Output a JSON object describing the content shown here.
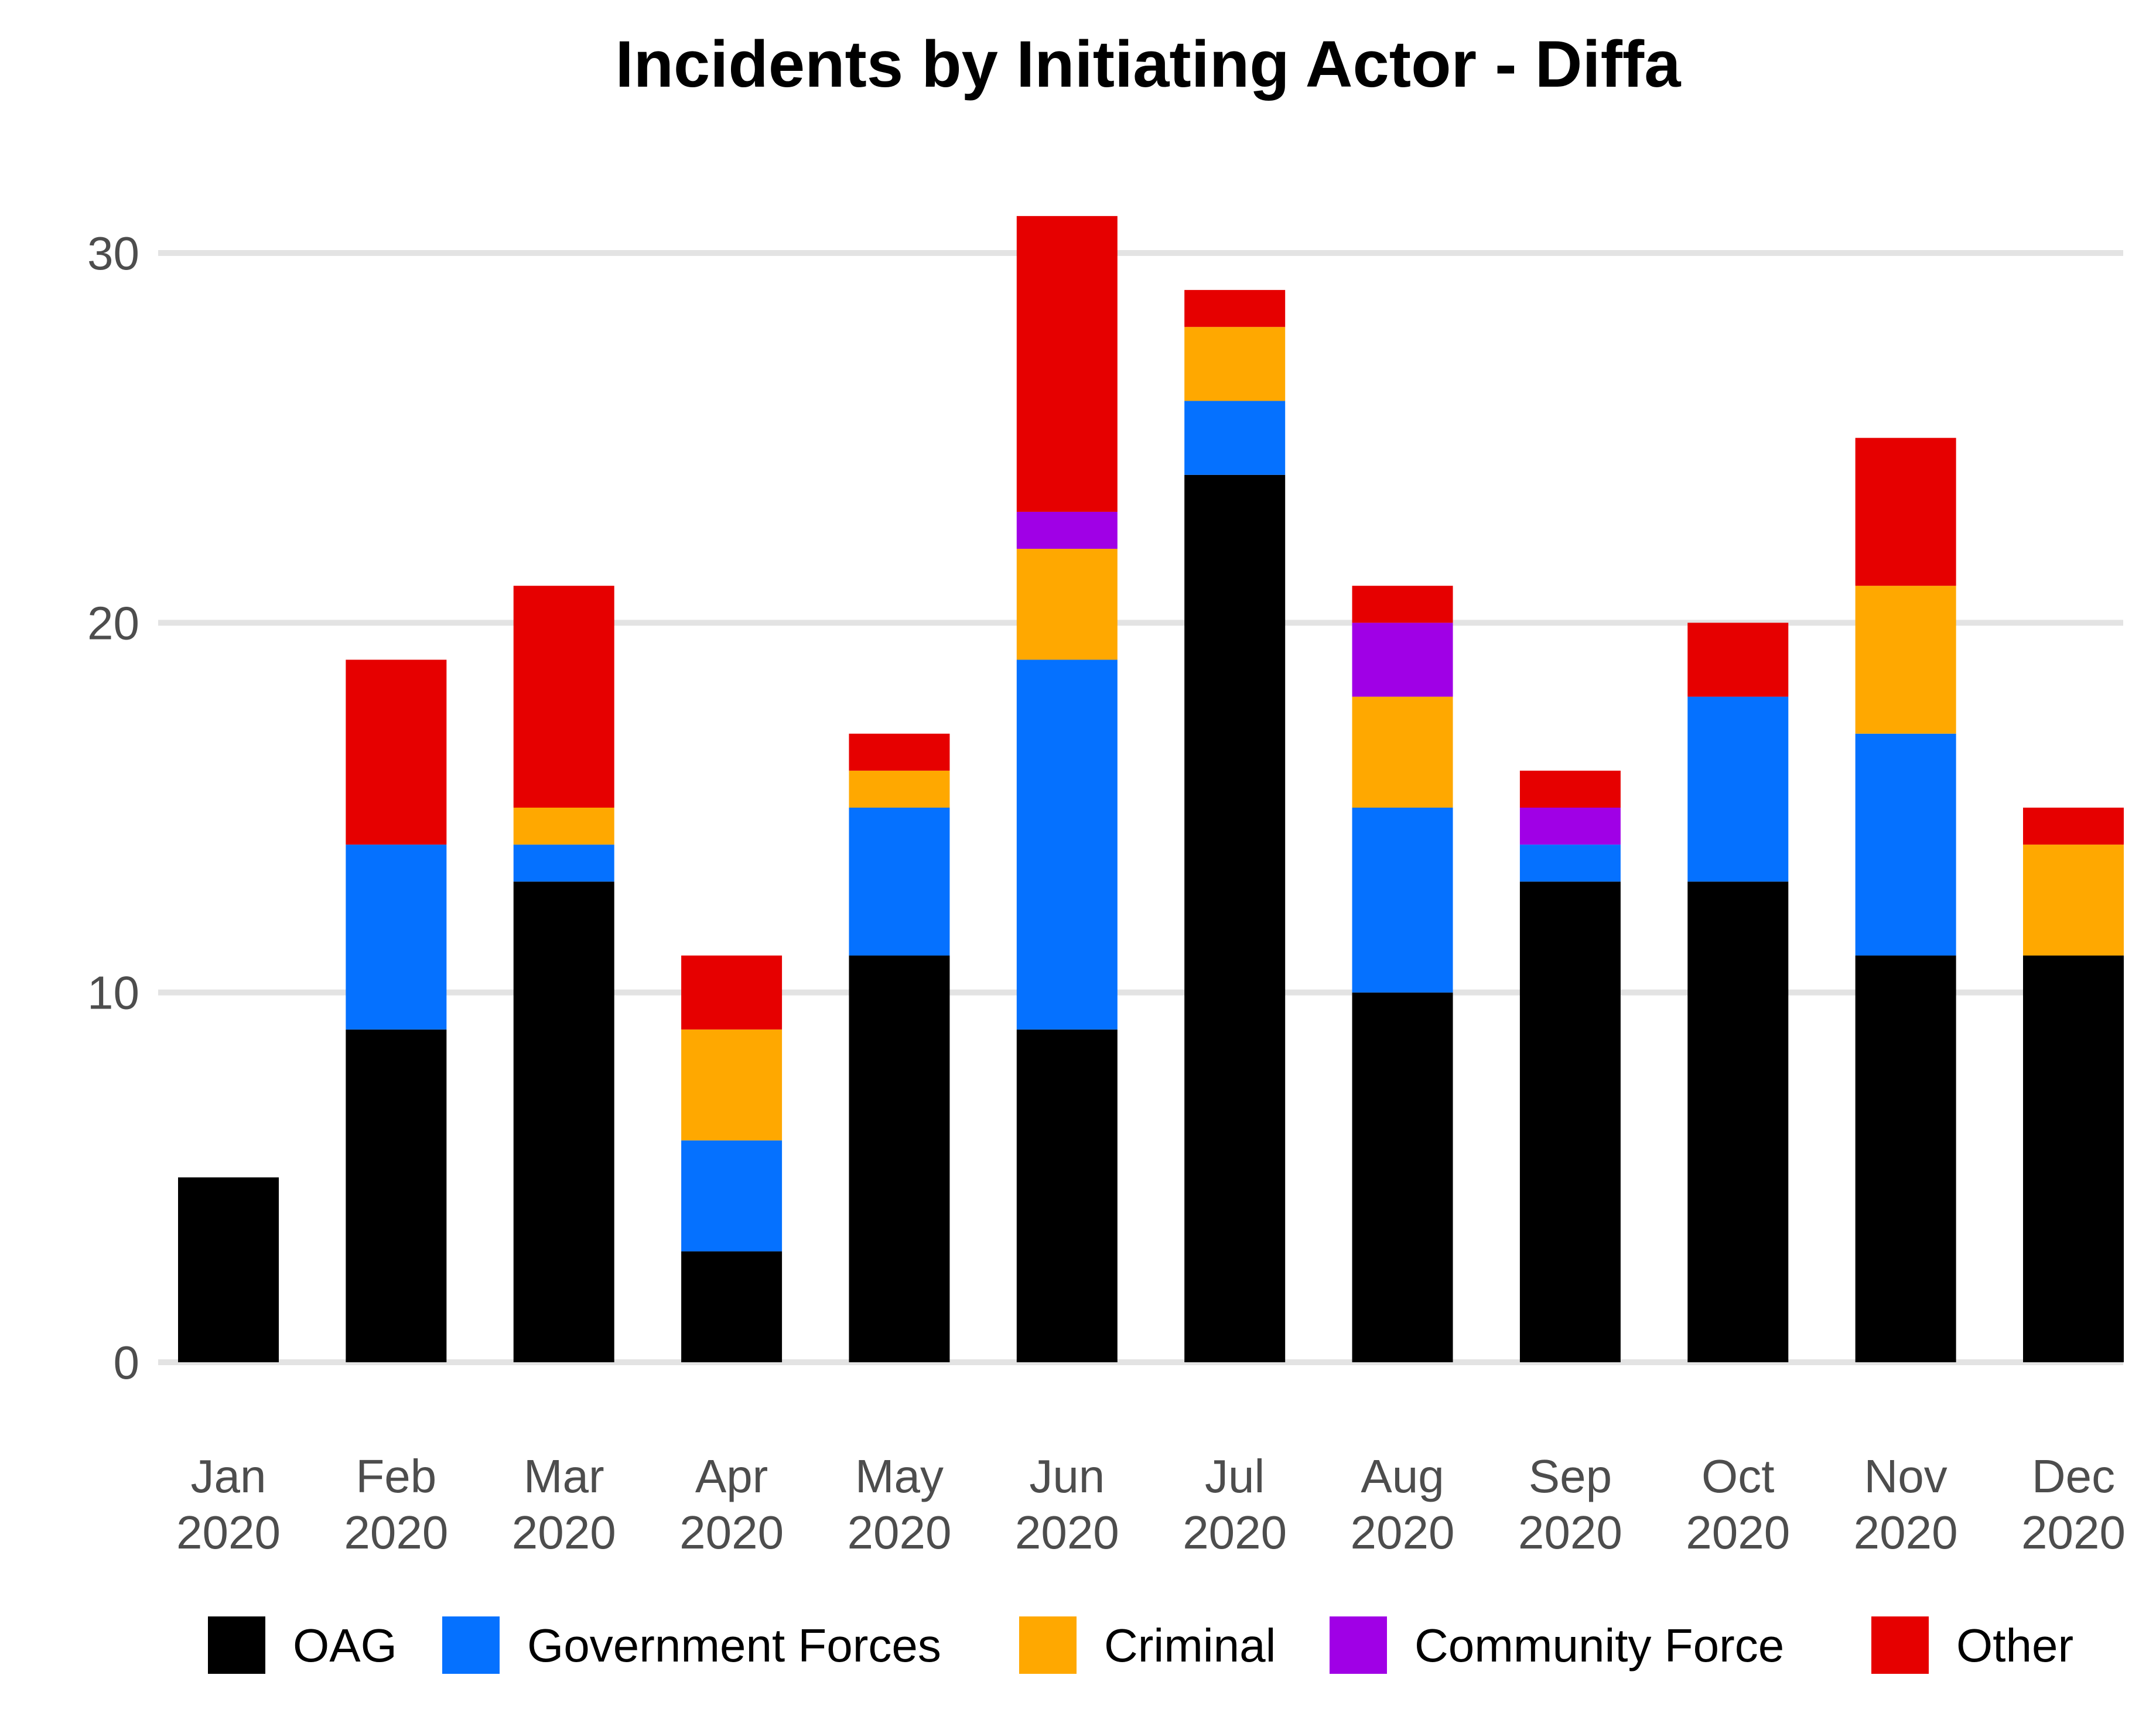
{
  "chart_data": {
    "type": "bar",
    "stacked": true,
    "title": "Incidents by Initiating Actor - Diffa",
    "xlabel": "",
    "ylabel": "",
    "ylim": [
      0,
      32
    ],
    "yticks": [
      0,
      10,
      20,
      30
    ],
    "grid": "horizontal",
    "legend_position": "bottom",
    "categories": [
      [
        "Jan",
        "2020"
      ],
      [
        "Feb",
        "2020"
      ],
      [
        "Mar",
        "2020"
      ],
      [
        "Apr",
        "2020"
      ],
      [
        "May",
        "2020"
      ],
      [
        "Jun",
        "2020"
      ],
      [
        "Jul",
        "2020"
      ],
      [
        "Aug",
        "2020"
      ],
      [
        "Sep",
        "2020"
      ],
      [
        "Oct",
        "2020"
      ],
      [
        "Nov",
        "2020"
      ],
      [
        "Dec",
        "2020"
      ]
    ],
    "series": [
      {
        "name": "OAG",
        "color": "#000000",
        "values": [
          5,
          9,
          13,
          3,
          11,
          9,
          24,
          10,
          13,
          13,
          11,
          11
        ]
      },
      {
        "name": "Government Forces",
        "color": "#0571FF",
        "values": [
          0,
          5,
          1,
          3,
          4,
          10,
          2,
          5,
          1,
          5,
          6,
          0
        ]
      },
      {
        "name": "Criminal",
        "color": "#FFA800",
        "values": [
          0,
          0,
          1,
          3,
          1,
          3,
          2,
          3,
          0,
          0,
          4,
          3
        ]
      },
      {
        "name": "Community Force",
        "color": "#A000E6",
        "values": [
          0,
          0,
          0,
          0,
          0,
          1,
          0,
          2,
          1,
          0,
          0,
          0
        ]
      },
      {
        "name": "Other",
        "color": "#E60000",
        "values": [
          0,
          5,
          6,
          2,
          1,
          8,
          1,
          1,
          1,
          2,
          4,
          1
        ]
      }
    ]
  }
}
